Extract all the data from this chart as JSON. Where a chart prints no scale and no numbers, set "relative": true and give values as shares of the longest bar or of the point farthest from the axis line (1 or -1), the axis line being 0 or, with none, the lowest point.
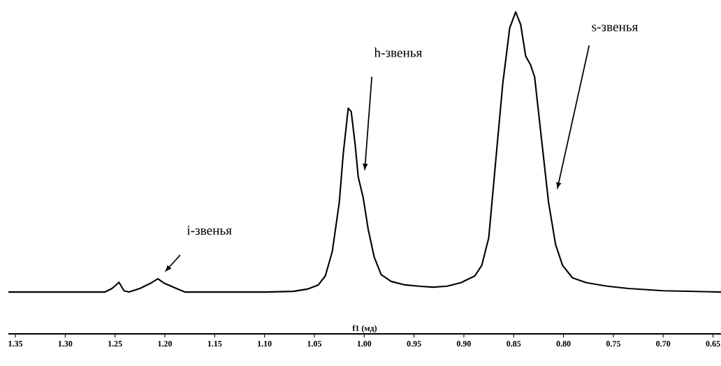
{
  "chart_data": {
    "type": "line",
    "xlabel": "f1 (мд)",
    "relative": true,
    "xlim": [
      1.357,
      0.642
    ],
    "xticks": [
      {
        "value": 1.35,
        "label": "1.35"
      },
      {
        "value": 1.3,
        "label": "1.30"
      },
      {
        "value": 1.25,
        "label": "1.25"
      },
      {
        "value": 1.2,
        "label": "1.20"
      },
      {
        "value": 1.15,
        "label": "1.15"
      },
      {
        "value": 1.1,
        "label": "1.10"
      },
      {
        "value": 1.05,
        "label": "1.05"
      },
      {
        "value": 1.0,
        "label": "1.00"
      },
      {
        "value": 0.95,
        "label": "0.95"
      },
      {
        "value": 0.9,
        "label": "0.90"
      },
      {
        "value": 0.85,
        "label": "0.85"
      },
      {
        "value": 0.8,
        "label": "0.80"
      },
      {
        "value": 0.75,
        "label": "0.75"
      },
      {
        "value": 0.7,
        "label": "0.70"
      },
      {
        "value": 0.65,
        "label": "0.65"
      }
    ],
    "series": [
      {
        "color": "#000000",
        "x": [
          1.357,
          1.26,
          1.253,
          1.246,
          1.241,
          1.236,
          1.225,
          1.215,
          1.207,
          1.201,
          1.19,
          1.18,
          1.155,
          1.099,
          1.071,
          1.057,
          1.046,
          1.039,
          1.032,
          1.025,
          1.021,
          1.016,
          1.013,
          1.009,
          1.006,
          1.001,
          0.996,
          0.99,
          0.983,
          0.973,
          0.959,
          0.945,
          0.931,
          0.917,
          0.903,
          0.889,
          0.882,
          0.875,
          0.868,
          0.861,
          0.854,
          0.848,
          0.843,
          0.838,
          0.833,
          0.829,
          0.822,
          0.815,
          0.808,
          0.801,
          0.791,
          0.777,
          0.756,
          0.735,
          0.7,
          0.642
        ],
        "values": [
          0.13,
          0.13,
          0.141,
          0.16,
          0.134,
          0.13,
          0.141,
          0.156,
          0.171,
          0.158,
          0.143,
          0.13,
          0.13,
          0.13,
          0.132,
          0.139,
          0.152,
          0.18,
          0.256,
          0.408,
          0.56,
          0.701,
          0.69,
          0.586,
          0.488,
          0.423,
          0.325,
          0.239,
          0.184,
          0.163,
          0.152,
          0.148,
          0.145,
          0.148,
          0.159,
          0.18,
          0.213,
          0.299,
          0.538,
          0.776,
          0.95,
          1.0,
          0.961,
          0.863,
          0.835,
          0.798,
          0.603,
          0.408,
          0.278,
          0.213,
          0.174,
          0.159,
          0.148,
          0.141,
          0.134,
          0.13
        ]
      }
    ],
    "annotations": [
      "i-звенья",
      "h-звенья",
      "s-звенья"
    ]
  }
}
